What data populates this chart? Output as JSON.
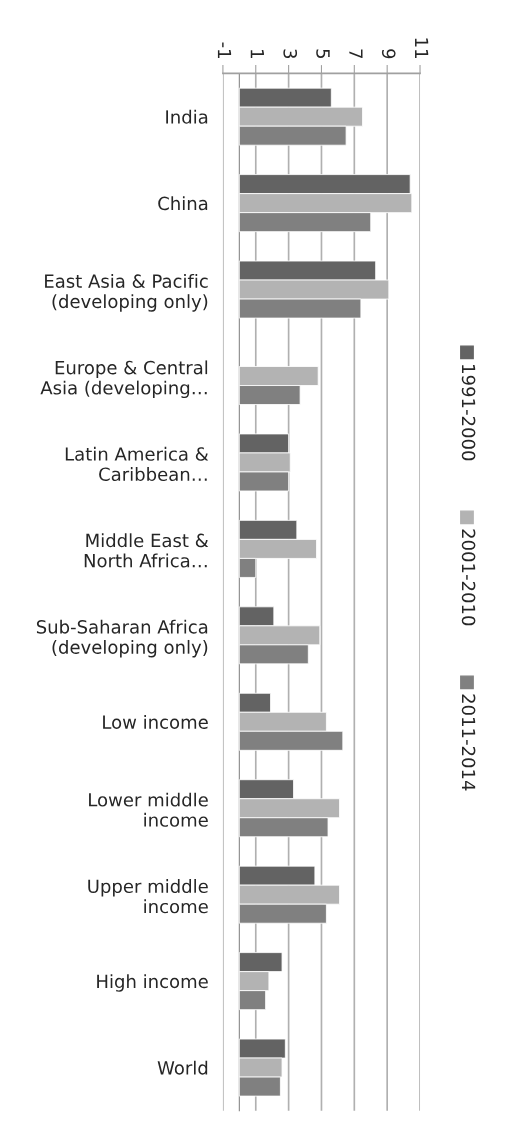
{
  "chart_data": {
    "type": "bar",
    "orientation": "horizontal",
    "categories": [
      "India",
      "China",
      "East Asia & Pacific\n(developing only)",
      "Europe & Central\nAsia (developing…",
      "Latin America &\nCaribbean…",
      "Middle East &\nNorth Africa…",
      "Sub-Saharan Africa\n(developing only)",
      "Low income",
      "Lower middle\nincome",
      "Upper middle\nincome",
      "High income",
      "World"
    ],
    "series": [
      {
        "name": "1991-2000",
        "color": "#636363",
        "values": [
          5.6,
          10.4,
          8.3,
          null,
          3.0,
          3.5,
          2.1,
          1.9,
          3.3,
          4.6,
          2.6,
          2.8
        ]
      },
      {
        "name": "2001-2010",
        "color": "#b3b3b3",
        "values": [
          7.5,
          10.5,
          9.1,
          4.8,
          3.1,
          4.7,
          4.9,
          5.3,
          6.1,
          6.1,
          1.8,
          2.6
        ]
      },
      {
        "name": "2011-2014",
        "color": "#808080",
        "values": [
          6.5,
          8.0,
          7.4,
          3.7,
          3.0,
          1.0,
          4.2,
          6.3,
          5.4,
          5.3,
          1.6,
          2.5
        ]
      }
    ],
    "xlim": [
      -1,
      11
    ],
    "xticks": [
      {
        "value": -1,
        "label": "-1"
      },
      1,
      3,
      5,
      7,
      9,
      11
    ],
    "grid": "x",
    "legend": "right"
  }
}
